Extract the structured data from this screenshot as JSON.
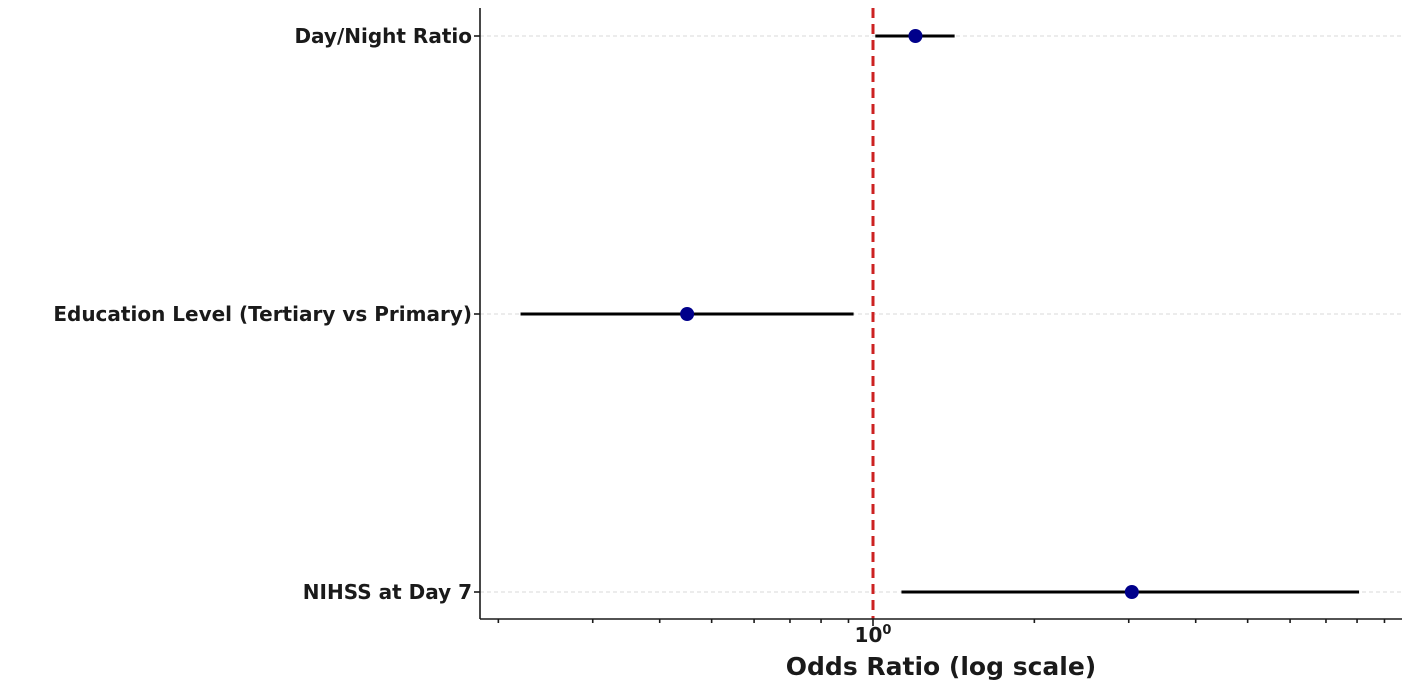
{
  "chart_data": {
    "type": "forest",
    "title": "",
    "xlabel": "Odds Ratio (log scale)",
    "ylabel": "",
    "xscale": "log",
    "xlim": [
      0.185,
      9.7
    ],
    "major_ticks": [
      {
        "value": 1,
        "label_base": "10",
        "label_exp": "0"
      }
    ],
    "minor_ticks": [
      0.2,
      0.3,
      0.4,
      0.5,
      0.6,
      0.7,
      0.8,
      0.9,
      2,
      3,
      4,
      5,
      6,
      7,
      8,
      9
    ],
    "reference_line": {
      "x": 1,
      "style": "dashed",
      "color": "#cc2222"
    },
    "grid": {
      "axis": "y",
      "style": "dashed",
      "color": "#d9d9d9"
    },
    "marker_color": "#00008b",
    "ci_color": "#000000",
    "categories": [
      "Day/Night Ratio",
      "Education Level (Tertiary vs Primary)",
      "NIHSS at Day 7"
    ],
    "series": [
      {
        "name": "Odds Ratio",
        "values": [
          1.2,
          0.45,
          3.04
        ],
        "ci_lower": [
          1.01,
          0.22,
          1.13
        ],
        "ci_upper": [
          1.42,
          0.92,
          8.07
        ]
      }
    ]
  }
}
